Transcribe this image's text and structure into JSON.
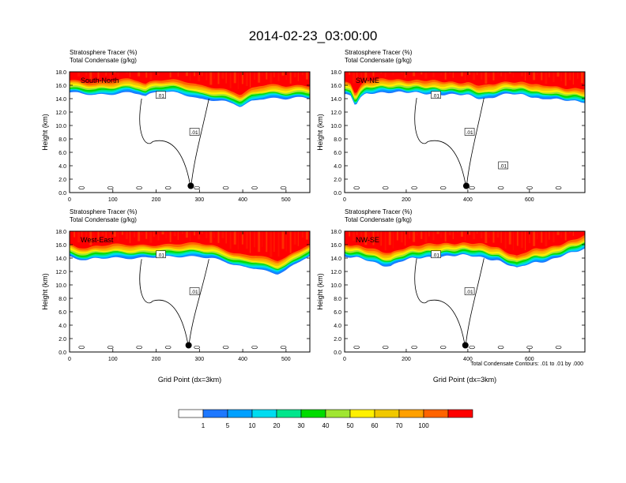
{
  "figure": {
    "title": "2014-02-23_03:00:00",
    "contour_note": "Total Condensate Contours: .01 to .01 by .000"
  },
  "colorbar": {
    "labels": [
      "1",
      "5",
      "10",
      "20",
      "30",
      "40",
      "50",
      "60",
      "70",
      "100"
    ],
    "colors": [
      "#ffffff",
      "#1e78ff",
      "#00a0ff",
      "#00dcf0",
      "#00e68c",
      "#00dc00",
      "#a0e632",
      "#fff000",
      "#f0c800",
      "#ffa000",
      "#ff6400",
      "#ff0000"
    ]
  },
  "chart_data": [
    {
      "type": "heatmap",
      "panel": "South-North",
      "header_lines": [
        "Stratosphere Tracer   (%)",
        "Total Condensate   (g/kg)"
      ],
      "xlabel": "",
      "ylabel": "Height (km)",
      "xlim": [
        0,
        555
      ],
      "ylim": [
        0,
        18
      ],
      "xticks": [
        "0",
        "100",
        "200",
        "300",
        "400",
        "500"
      ],
      "yticks": [
        "0.0",
        "2.0",
        "4.0",
        "6.0",
        "8.0",
        "10.0",
        "12.0",
        "14.0",
        "16.0",
        "18.0"
      ],
      "contour_labels": [
        ".01",
        ".01"
      ],
      "marker_x": 280,
      "tracer_base_km": [
        [
          0,
          14.9
        ],
        [
          20,
          14.8
        ],
        [
          40,
          14.6
        ],
        [
          60,
          14.5
        ],
        [
          80,
          14.6
        ],
        [
          100,
          14.7
        ],
        [
          120,
          14.9
        ],
        [
          140,
          15.0
        ],
        [
          160,
          14.8
        ],
        [
          175,
          14.3
        ],
        [
          185,
          14.6
        ],
        [
          200,
          14.9
        ],
        [
          220,
          15.0
        ],
        [
          240,
          14.9
        ],
        [
          260,
          14.7
        ],
        [
          280,
          14.4
        ],
        [
          300,
          14.0
        ],
        [
          320,
          13.9
        ],
        [
          340,
          13.7
        ],
        [
          360,
          13.5
        ],
        [
          380,
          13.2
        ],
        [
          395,
          12.7
        ],
        [
          405,
          13.0
        ],
        [
          420,
          13.6
        ],
        [
          440,
          14.0
        ],
        [
          460,
          14.1
        ],
        [
          480,
          14.1
        ],
        [
          500,
          14.0
        ],
        [
          520,
          14.1
        ],
        [
          540,
          14.1
        ],
        [
          555,
          14.0
        ]
      ]
    },
    {
      "type": "heatmap",
      "panel": "SW-NE",
      "header_lines": [
        "Stratosphere Tracer   (%)",
        "Total Condensate   (g/kg)"
      ],
      "xlabel": "",
      "ylabel": "Height (km)",
      "xlim": [
        0,
        780
      ],
      "ylim": [
        0,
        18
      ],
      "xticks": [
        "0",
        "200",
        "400",
        "600"
      ],
      "yticks": [
        "0.0",
        "2.0",
        "4.0",
        "6.0",
        "8.0",
        "10.0",
        "12.0",
        "14.0",
        "16.0",
        "18.0"
      ],
      "contour_labels": [
        ".01",
        ".01",
        ".01"
      ],
      "marker_x": 395,
      "tracer_base_km": [
        [
          0,
          14.6
        ],
        [
          20,
          14.4
        ],
        [
          35,
          12.9
        ],
        [
          50,
          14.0
        ],
        [
          70,
          14.7
        ],
        [
          100,
          14.9
        ],
        [
          150,
          15.0
        ],
        [
          200,
          14.9
        ],
        [
          250,
          14.8
        ],
        [
          300,
          14.7
        ],
        [
          350,
          14.6
        ],
        [
          400,
          14.5
        ],
        [
          430,
          14.1
        ],
        [
          460,
          14.0
        ],
        [
          480,
          14.2
        ],
        [
          500,
          14.5
        ],
        [
          540,
          14.7
        ],
        [
          580,
          14.5
        ],
        [
          620,
          14.2
        ],
        [
          640,
          13.9
        ],
        [
          660,
          14.1
        ],
        [
          700,
          13.8
        ],
        [
          740,
          13.6
        ],
        [
          780,
          13.5
        ]
      ]
    },
    {
      "type": "heatmap",
      "panel": "West-East",
      "header_lines": [
        "Stratosphere Tracer   (%)",
        "Total Condensate   (g/kg)"
      ],
      "xlabel": "Grid Point (dx=3km)",
      "ylabel": "Height (km)",
      "xlim": [
        0,
        555
      ],
      "ylim": [
        0,
        18
      ],
      "xticks": [
        "0",
        "100",
        "200",
        "300",
        "400",
        "500"
      ],
      "yticks": [
        "0.0",
        "2.0",
        "4.0",
        "6.0",
        "8.0",
        "10.0",
        "12.0",
        "14.0",
        "16.0",
        "18.0"
      ],
      "contour_labels": [
        ".01",
        ".01"
      ],
      "marker_x": 275,
      "tracer_base_km": [
        [
          0,
          14.2
        ],
        [
          20,
          13.8
        ],
        [
          40,
          13.6
        ],
        [
          60,
          13.9
        ],
        [
          100,
          14.1
        ],
        [
          150,
          14.0
        ],
        [
          200,
          14.1
        ],
        [
          250,
          14.2
        ],
        [
          300,
          14.3
        ],
        [
          330,
          14.0
        ],
        [
          360,
          13.4
        ],
        [
          380,
          12.9
        ],
        [
          400,
          12.6
        ],
        [
          430,
          12.5
        ],
        [
          460,
          12.0
        ],
        [
          480,
          11.7
        ],
        [
          500,
          12.2
        ],
        [
          520,
          13.0
        ],
        [
          540,
          13.8
        ],
        [
          555,
          14.2
        ]
      ]
    },
    {
      "type": "heatmap",
      "panel": "NW-SE",
      "header_lines": [
        "Stratosphere Tracer   (%)",
        "Total Condensate   (g/kg)"
      ],
      "xlabel": "Grid Point (dx=3km)",
      "ylabel": "Height (km)",
      "xlim": [
        0,
        780
      ],
      "ylim": [
        0,
        18
      ],
      "xticks": [
        "0",
        "200",
        "400",
        "600"
      ],
      "yticks": [
        "0.0",
        "2.0",
        "4.0",
        "6.0",
        "8.0",
        "10.0",
        "12.0",
        "14.0",
        "16.0",
        "18.0"
      ],
      "contour_labels": [
        ".01",
        ".01"
      ],
      "marker_x": 392,
      "tracer_base_km": [
        [
          0,
          14.2
        ],
        [
          40,
          14.0
        ],
        [
          80,
          13.6
        ],
        [
          120,
          13.0
        ],
        [
          150,
          12.8
        ],
        [
          180,
          13.5
        ],
        [
          220,
          13.9
        ],
        [
          260,
          14.1
        ],
        [
          300,
          14.2
        ],
        [
          340,
          14.3
        ],
        [
          380,
          14.4
        ],
        [
          420,
          14.3
        ],
        [
          460,
          14.0
        ],
        [
          500,
          13.6
        ],
        [
          540,
          12.8
        ],
        [
          560,
          12.4
        ],
        [
          580,
          12.9
        ],
        [
          620,
          13.4
        ],
        [
          660,
          13.6
        ],
        [
          700,
          14.2
        ],
        [
          740,
          14.8
        ],
        [
          780,
          15.4
        ]
      ]
    }
  ]
}
